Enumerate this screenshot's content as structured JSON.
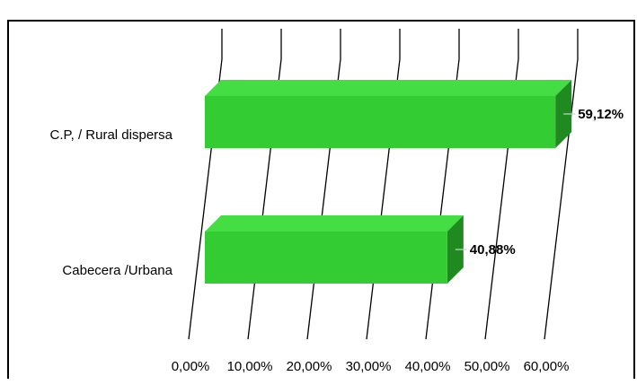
{
  "chart_data": {
    "type": "bar",
    "orientation": "horizontal",
    "style": "3d",
    "title": "",
    "categories": [
      "C.P, / Rural dispersa",
      "Cabecera /Urbana"
    ],
    "values": [
      59.12,
      40.88
    ],
    "value_labels": [
      "59,12%",
      "40,88%"
    ],
    "x_ticks": [
      "0,00%",
      "10,00%",
      "20,00%",
      "30,00%",
      "40,00%",
      "50,00%",
      "60,00%"
    ],
    "xlim": [
      0,
      60
    ],
    "xlabel": "",
    "ylabel": "",
    "grid": true,
    "legend": "none",
    "colors": {
      "bar_front": "#33cc33",
      "bar_top": "#44dd44",
      "bar_side": "#1f8a1f",
      "grid": "#000000"
    }
  }
}
